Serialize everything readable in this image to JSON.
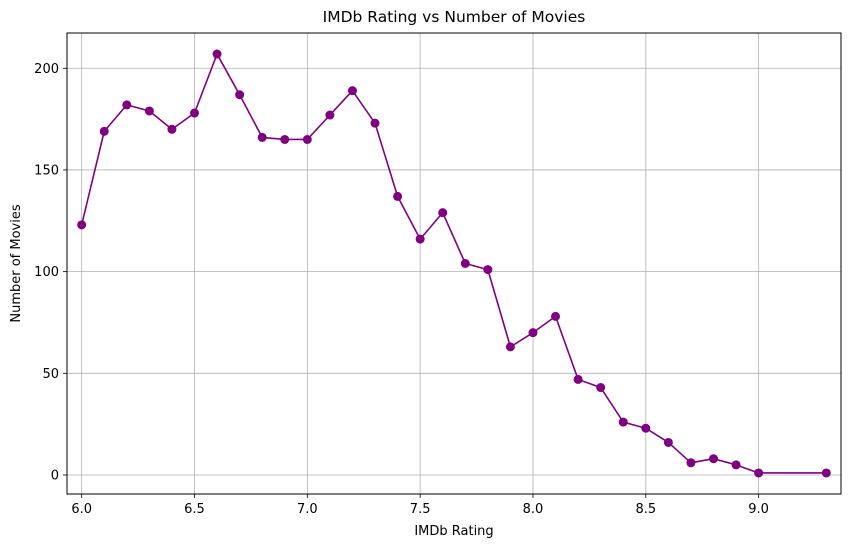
{
  "chart_data": {
    "type": "line",
    "title": "IMDb Rating vs Number of Movies",
    "xlabel": "IMDb Rating",
    "ylabel": "Number of Movies",
    "xlim": [
      5.935,
      9.365
    ],
    "ylim": [
      -9.35,
      217.35
    ],
    "x_ticks": [
      6.0,
      6.5,
      7.0,
      7.5,
      8.0,
      8.5,
      9.0
    ],
    "x_tick_labels": [
      "6.0",
      "6.5",
      "7.0",
      "7.5",
      "8.0",
      "8.5",
      "9.0"
    ],
    "y_ticks": [
      0,
      50,
      100,
      150,
      200
    ],
    "y_tick_labels": [
      "0",
      "50",
      "100",
      "150",
      "200"
    ],
    "grid": true,
    "color": "#800080",
    "marker": "circle",
    "series": [
      {
        "x": [
          6.0,
          6.1,
          6.2,
          6.3,
          6.4,
          6.5,
          6.6,
          6.7,
          6.8,
          6.9,
          7.0,
          7.1,
          7.2,
          7.3,
          7.4,
          7.5,
          7.6,
          7.7,
          7.8,
          7.9,
          8.0,
          8.1,
          8.2,
          8.3,
          8.4,
          8.5,
          8.6,
          8.7,
          8.8,
          8.9,
          9.0,
          9.3
        ],
        "values": [
          123,
          169,
          182,
          179,
          170,
          178,
          207,
          187,
          166,
          165,
          165,
          177,
          189,
          173,
          137,
          116,
          129,
          104,
          101,
          63,
          70,
          78,
          47,
          43,
          26,
          23,
          16,
          6,
          8,
          5,
          1,
          1
        ]
      }
    ]
  }
}
